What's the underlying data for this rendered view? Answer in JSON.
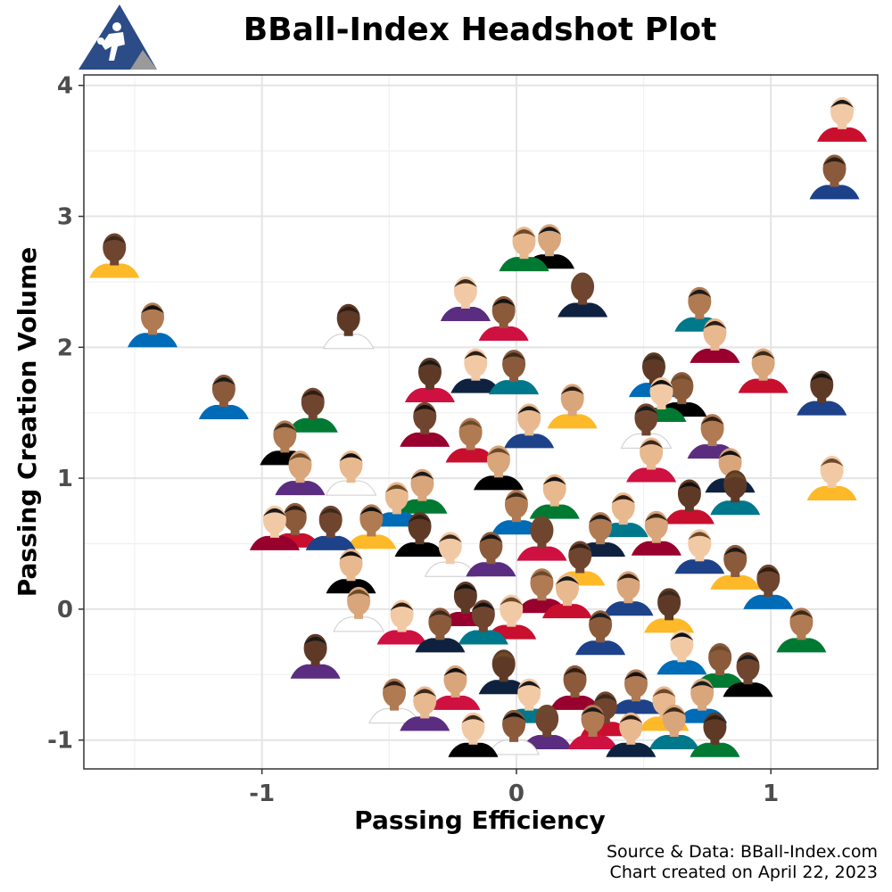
{
  "chart_data": {
    "type": "scatter",
    "title": "BBall-Index Headshot Plot",
    "xlabel": "Passing Efficiency",
    "ylabel": "Passing Creation Volume",
    "xlim": [
      -1.7,
      1.42
    ],
    "ylim": [
      -1.22,
      4.08
    ],
    "x_ticks": [
      -1,
      0,
      1
    ],
    "y_ticks": [
      -1,
      0,
      1,
      2,
      3,
      4
    ],
    "x_tick_labels": [
      "-1",
      "0",
      "1"
    ],
    "y_tick_labels": [
      "-1",
      "0",
      "1",
      "2",
      "3",
      "4"
    ],
    "grid": true,
    "marker": "player headshot",
    "caption_lines": [
      "Source & Data: BBall-Index.com",
      "Chart created on April 22, 2023"
    ],
    "points": [
      {
        "x": 1.28,
        "y": 3.72
      },
      {
        "x": 1.25,
        "y": 3.28
      },
      {
        "x": -1.58,
        "y": 2.68
      },
      {
        "x": -1.43,
        "y": 2.15
      },
      {
        "x": 0.03,
        "y": 2.73
      },
      {
        "x": 0.13,
        "y": 2.75
      },
      {
        "x": -0.66,
        "y": 2.14
      },
      {
        "x": -0.2,
        "y": 2.35
      },
      {
        "x": -0.05,
        "y": 2.2
      },
      {
        "x": 0.26,
        "y": 2.38
      },
      {
        "x": 0.72,
        "y": 2.27
      },
      {
        "x": 0.78,
        "y": 2.03
      },
      {
        "x": 0.97,
        "y": 1.8
      },
      {
        "x": 1.2,
        "y": 1.63
      },
      {
        "x": 1.24,
        "y": 0.98
      },
      {
        "x": -1.15,
        "y": 1.6
      },
      {
        "x": -0.8,
        "y": 1.5
      },
      {
        "x": -0.91,
        "y": 1.25
      },
      {
        "x": -0.65,
        "y": 1.02
      },
      {
        "x": -0.85,
        "y": 1.02
      },
      {
        "x": -0.34,
        "y": 1.73
      },
      {
        "x": -0.16,
        "y": 1.8
      },
      {
        "x": -0.01,
        "y": 1.79
      },
      {
        "x": -0.36,
        "y": 1.39
      },
      {
        "x": -0.18,
        "y": 1.27
      },
      {
        "x": 0.05,
        "y": 1.38
      },
      {
        "x": 0.22,
        "y": 1.53
      },
      {
        "x": 0.54,
        "y": 1.77
      },
      {
        "x": 0.57,
        "y": 1.58
      },
      {
        "x": 0.65,
        "y": 1.62
      },
      {
        "x": 0.51,
        "y": 1.38
      },
      {
        "x": 0.77,
        "y": 1.3
      },
      {
        "x": 0.53,
        "y": 1.12
      },
      {
        "x": 0.84,
        "y": 1.04
      },
      {
        "x": 0.86,
        "y": 0.87
      },
      {
        "x": -0.95,
        "y": 0.6
      },
      {
        "x": -0.87,
        "y": 0.62
      },
      {
        "x": -0.73,
        "y": 0.6
      },
      {
        "x": -0.57,
        "y": 0.61
      },
      {
        "x": -0.47,
        "y": 0.78
      },
      {
        "x": -0.37,
        "y": 0.88
      },
      {
        "x": -0.38,
        "y": 0.55
      },
      {
        "x": -0.26,
        "y": 0.4
      },
      {
        "x": -0.1,
        "y": 0.4
      },
      {
        "x": 0.1,
        "y": 0.52
      },
      {
        "x": 0.33,
        "y": 0.55
      },
      {
        "x": 0.42,
        "y": 0.7
      },
      {
        "x": 0.55,
        "y": 0.56
      },
      {
        "x": 0.68,
        "y": 0.8
      },
      {
        "x": 0.72,
        "y": 0.42
      },
      {
        "x": 0.86,
        "y": 0.3
      },
      {
        "x": 0.99,
        "y": 0.15
      },
      {
        "x": 1.12,
        "y": -0.18
      },
      {
        "x": -0.65,
        "y": 0.27
      },
      {
        "x": -0.62,
        "y": -0.02
      },
      {
        "x": -0.79,
        "y": -0.38
      },
      {
        "x": -0.45,
        "y": -0.12
      },
      {
        "x": -0.3,
        "y": -0.18
      },
      {
        "x": -0.13,
        "y": -0.12
      },
      {
        "x": 0.1,
        "y": 0.12
      },
      {
        "x": 0.2,
        "y": 0.08
      },
      {
        "x": 0.44,
        "y": 0.1
      },
      {
        "x": 0.6,
        "y": -0.03
      },
      {
        "x": 0.65,
        "y": -0.35
      },
      {
        "x": 0.8,
        "y": -0.45
      },
      {
        "x": 0.91,
        "y": -0.52
      },
      {
        "x": -0.48,
        "y": -0.72
      },
      {
        "x": -0.36,
        "y": -0.78
      },
      {
        "x": -0.24,
        "y": -0.62
      },
      {
        "x": -0.05,
        "y": -0.5
      },
      {
        "x": 0.05,
        "y": -0.72
      },
      {
        "x": 0.23,
        "y": -0.62
      },
      {
        "x": 0.35,
        "y": -0.82
      },
      {
        "x": 0.47,
        "y": -0.65
      },
      {
        "x": 0.58,
        "y": -0.78
      },
      {
        "x": 0.73,
        "y": -0.72
      },
      {
        "x": 0.78,
        "y": -0.98
      },
      {
        "x": -0.17,
        "y": -0.98
      },
      {
        "x": -0.01,
        "y": -0.96
      },
      {
        "x": 0.12,
        "y": -0.92
      },
      {
        "x": 0.3,
        "y": -0.92
      },
      {
        "x": 0.45,
        "y": -0.98
      },
      {
        "x": 0.62,
        "y": -0.92
      },
      {
        "x": -0.2,
        "y": 0.02
      },
      {
        "x": -0.02,
        "y": -0.08
      },
      {
        "x": 0.33,
        "y": -0.2
      },
      {
        "x": 0.25,
        "y": 0.33
      },
      {
        "x": 0.0,
        "y": 0.72
      },
      {
        "x": 0.15,
        "y": 0.84
      },
      {
        "x": -0.07,
        "y": 1.06
      }
    ]
  }
}
